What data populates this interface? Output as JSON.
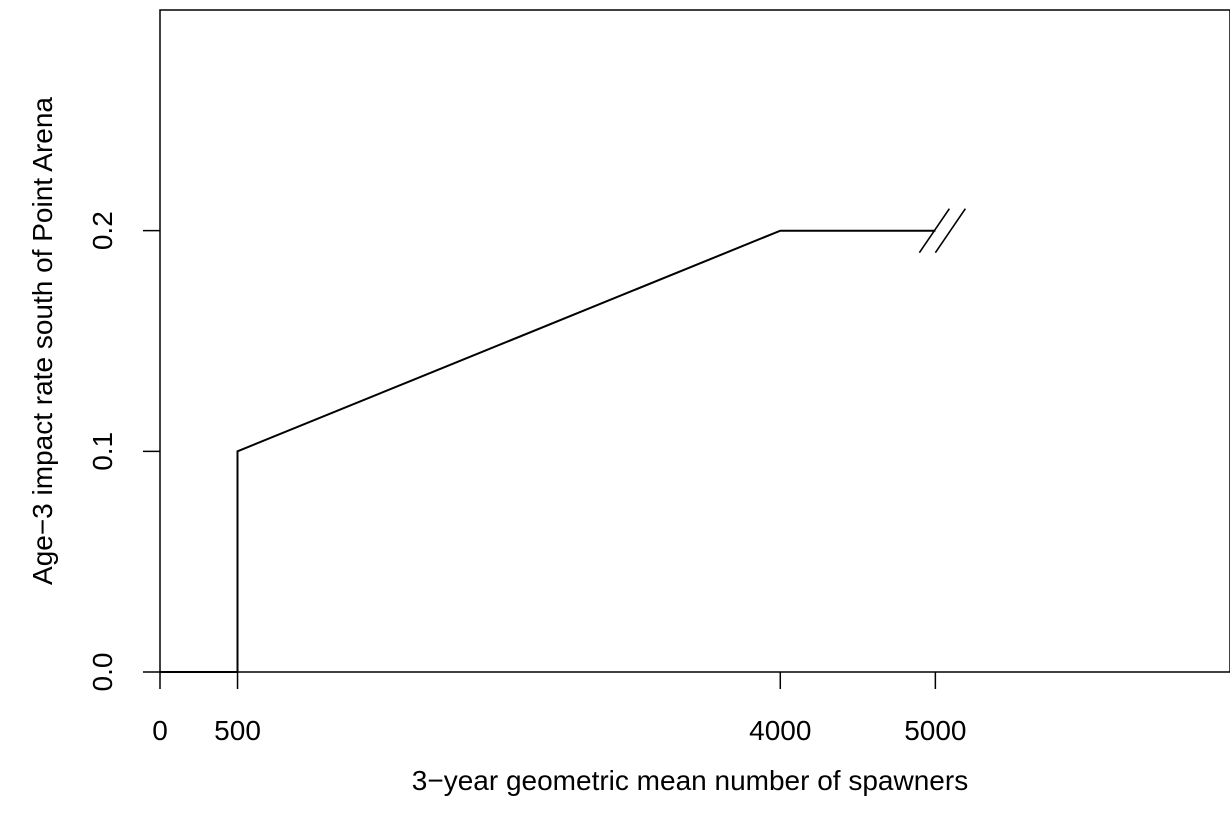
{
  "chart_data": {
    "type": "line",
    "title": "",
    "xlabel": "3−year geometric mean number of spawners",
    "ylabel": "Age−3 impact rate south of Point Arena",
    "xlim": [
      0,
      6900
    ],
    "ylim": [
      0,
      0.3
    ],
    "x_ticks": [
      0,
      500,
      4000,
      5000
    ],
    "x_tick_labels": [
      "0",
      "500",
      "4000",
      "5000"
    ],
    "y_ticks": [
      0.0,
      0.1,
      0.2
    ],
    "y_tick_labels": [
      "0.0",
      "0.1",
      "0.2"
    ],
    "grid": false,
    "legend": "none",
    "series": [
      {
        "x": [
          0,
          500,
          500,
          4000,
          5000
        ],
        "y": [
          0,
          0,
          0.1,
          0.2,
          0.2
        ]
      }
    ],
    "axis_break": {
      "x": 5000,
      "y": 0.2
    }
  }
}
